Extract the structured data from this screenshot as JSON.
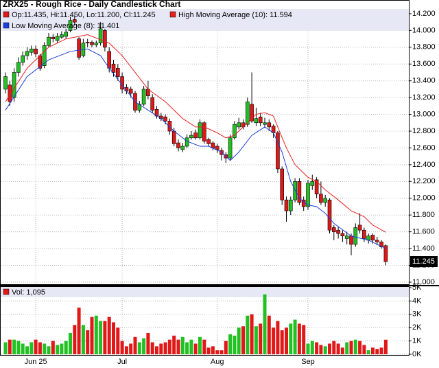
{
  "chart_data": [
    {
      "type": "candlestick",
      "title": "ZRX25 - Rough Rice - Daily Candlestick Chart",
      "ohlc_label": "Op:11.435, Hi:11.450, Lo:11.200, Cl:11.245",
      "up_color": "#22c022",
      "down_color": "#e01818",
      "grid": true,
      "ylim": [
        10.975,
        14.355
      ],
      "yticks": [
        {
          "value": 11.0,
          "label": "11.000"
        },
        {
          "value": 11.2,
          "label": "11.200"
        },
        {
          "value": 11.4,
          "label": "11.400"
        },
        {
          "value": 11.6,
          "label": "11.600"
        },
        {
          "value": 11.8,
          "label": "11.800"
        },
        {
          "value": 12.0,
          "label": "12.000"
        },
        {
          "value": 12.2,
          "label": "12.200"
        },
        {
          "value": 12.4,
          "label": "12.400"
        },
        {
          "value": 12.6,
          "label": "12.600"
        },
        {
          "value": 12.8,
          "label": "12.800"
        },
        {
          "value": 13.0,
          "label": "13.000"
        },
        {
          "value": 13.2,
          "label": "13.200"
        },
        {
          "value": 13.4,
          "label": "13.400"
        },
        {
          "value": 13.6,
          "label": "13.600"
        },
        {
          "value": 13.8,
          "label": "13.800"
        },
        {
          "value": 14.0,
          "label": "14.000"
        },
        {
          "value": 14.2,
          "label": "14.200"
        }
      ],
      "open": [
        13.3,
        13.35,
        13.2,
        13.5,
        13.62,
        13.7,
        13.74,
        13.78,
        13.7,
        13.58,
        13.82,
        13.92,
        13.88,
        13.92,
        13.93,
        14.0,
        14.13,
        13.9,
        13.7,
        13.86,
        13.86,
        13.83,
        13.85,
        14.0,
        13.75,
        13.6,
        13.55,
        13.45,
        13.32,
        13.3,
        13.25,
        13.05,
        13.12,
        13.3,
        13.2,
        13.06,
        12.98,
        12.97,
        12.92,
        12.8,
        12.66,
        12.58,
        12.62,
        12.72,
        12.78,
        12.72,
        12.9,
        12.7,
        12.66,
        12.62,
        12.57,
        12.52,
        12.48,
        12.72,
        12.85,
        12.9,
        12.88,
        13.12,
        12.9,
        12.97,
        12.88,
        12.9,
        12.86,
        12.78,
        12.35,
        11.98,
        11.85,
        11.98,
        12.2,
        11.98,
        11.9,
        12.15,
        12.22,
        12.05,
        11.95,
        11.98,
        11.65,
        11.62,
        11.58,
        11.52,
        11.55,
        11.45,
        11.68,
        11.62,
        11.5,
        11.56,
        11.5,
        11.48,
        11.435
      ],
      "high": [
        13.5,
        13.4,
        13.55,
        13.68,
        13.75,
        13.8,
        13.82,
        13.82,
        13.72,
        13.86,
        13.97,
        13.96,
        13.97,
        13.99,
        14.02,
        14.16,
        14.18,
        13.92,
        13.9,
        13.9,
        13.88,
        13.88,
        14.1,
        14.02,
        13.8,
        13.65,
        13.6,
        13.5,
        13.36,
        13.33,
        13.28,
        13.16,
        13.34,
        13.4,
        13.24,
        13.1,
        13.02,
        13.0,
        12.95,
        12.84,
        12.7,
        12.66,
        12.76,
        12.8,
        12.82,
        12.94,
        12.92,
        12.72,
        12.68,
        12.65,
        12.6,
        12.55,
        12.76,
        12.92,
        12.96,
        12.94,
        13.2,
        13.5,
        13.08,
        13.02,
        12.96,
        12.94,
        12.88,
        12.8,
        12.38,
        12.02,
        12.02,
        12.24,
        12.24,
        12.02,
        12.22,
        12.28,
        12.25,
        12.2,
        12.04,
        12.0,
        11.68,
        11.66,
        11.62,
        11.6,
        11.58,
        11.7,
        11.82,
        11.65,
        11.58,
        11.58,
        11.54,
        11.5,
        11.45
      ],
      "low": [
        13.25,
        13.1,
        13.15,
        13.45,
        13.58,
        13.65,
        13.7,
        13.68,
        13.52,
        13.55,
        13.8,
        13.86,
        13.85,
        13.9,
        13.9,
        13.98,
        14.06,
        13.65,
        13.68,
        13.8,
        13.8,
        13.8,
        13.82,
        13.75,
        13.5,
        13.45,
        13.4,
        13.25,
        13.24,
        13.2,
        13.02,
        13.02,
        13.1,
        13.18,
        13.02,
        12.95,
        12.92,
        12.88,
        12.76,
        12.62,
        12.56,
        12.55,
        12.6,
        12.7,
        12.7,
        12.7,
        12.65,
        12.62,
        12.57,
        12.54,
        12.45,
        12.42,
        12.45,
        12.7,
        12.82,
        12.82,
        12.85,
        12.9,
        12.86,
        12.86,
        12.84,
        12.8,
        12.72,
        12.3,
        11.92,
        11.72,
        11.8,
        11.95,
        11.92,
        11.85,
        11.86,
        12.1,
        12.0,
        11.92,
        11.9,
        11.58,
        11.5,
        11.52,
        11.48,
        11.45,
        11.32,
        11.42,
        11.58,
        11.48,
        11.46,
        11.46,
        11.44,
        11.4,
        11.2
      ],
      "close": [
        13.45,
        13.15,
        13.5,
        13.62,
        13.7,
        13.75,
        13.78,
        13.72,
        13.55,
        13.82,
        13.92,
        13.9,
        13.93,
        13.95,
        13.98,
        14.12,
        14.1,
        13.68,
        13.85,
        13.85,
        13.83,
        13.85,
        14.02,
        13.8,
        13.55,
        13.5,
        13.45,
        13.3,
        13.28,
        13.25,
        13.05,
        13.12,
        13.3,
        13.22,
        13.05,
        12.98,
        12.95,
        12.92,
        12.8,
        12.65,
        12.6,
        12.62,
        12.72,
        12.75,
        12.72,
        12.9,
        12.68,
        12.65,
        12.6,
        12.58,
        12.52,
        12.48,
        12.72,
        12.88,
        12.9,
        12.85,
        13.15,
        12.92,
        12.95,
        12.9,
        12.9,
        12.85,
        12.78,
        12.35,
        11.98,
        11.85,
        11.98,
        12.2,
        11.95,
        11.9,
        12.18,
        12.2,
        12.05,
        11.95,
        12.0,
        11.62,
        11.6,
        11.58,
        11.55,
        11.55,
        11.45,
        11.65,
        11.62,
        11.52,
        11.55,
        11.5,
        11.48,
        11.42,
        11.245
      ],
      "ma_series": [
        {
          "name": "High Moving Average (10): 11.594",
          "color": "#e82020",
          "x": [
            0,
            5,
            10,
            14,
            19,
            24,
            27,
            30,
            33,
            37,
            41,
            44,
            46,
            49,
            51,
            53,
            55,
            58,
            60,
            62,
            63,
            65,
            67,
            70,
            72,
            74,
            77,
            80,
            83,
            85,
            88
          ],
          "values": [
            13.15,
            13.55,
            13.8,
            13.9,
            13.95,
            13.85,
            13.7,
            13.5,
            13.3,
            13.15,
            12.95,
            12.85,
            12.85,
            12.78,
            12.72,
            12.75,
            12.85,
            13.0,
            13.02,
            12.98,
            12.85,
            12.6,
            12.4,
            12.25,
            12.2,
            12.1,
            11.98,
            11.85,
            11.78,
            11.68,
            11.594
          ]
        },
        {
          "name": "Low Moving Average (8): 11.401",
          "color": "#1a3ee0",
          "x": [
            0,
            5,
            10,
            15,
            19,
            22,
            24,
            27,
            30,
            33,
            36,
            39,
            42,
            45,
            47,
            50,
            52,
            54,
            57,
            60,
            62,
            64,
            66,
            68,
            70,
            72,
            74,
            76,
            80,
            84,
            88
          ],
          "values": [
            13.05,
            13.45,
            13.65,
            13.75,
            13.78,
            13.7,
            13.55,
            13.35,
            13.15,
            13.05,
            12.95,
            12.8,
            12.68,
            12.62,
            12.62,
            12.55,
            12.45,
            12.55,
            12.75,
            12.85,
            12.78,
            12.55,
            12.2,
            12.0,
            11.92,
            11.9,
            11.82,
            11.7,
            11.55,
            11.5,
            11.401
          ]
        }
      ]
    },
    {
      "type": "bar",
      "legend": "Vol: 1,095",
      "grid": true,
      "categories": [
        null,
        null,
        null,
        null,
        null,
        null,
        null,
        "Jun 25",
        null,
        null,
        null,
        null,
        null,
        null,
        null,
        null,
        null,
        null,
        null,
        null,
        null,
        null,
        null,
        null,
        null,
        null,
        null,
        "Jul",
        null,
        null,
        null,
        null,
        null,
        null,
        null,
        null,
        null,
        null,
        null,
        null,
        null,
        null,
        null,
        null,
        null,
        null,
        null,
        null,
        null,
        "Aug",
        null,
        null,
        null,
        null,
        null,
        null,
        null,
        null,
        null,
        null,
        null,
        null,
        null,
        null,
        null,
        null,
        null,
        null,
        null,
        null,
        "Sep",
        null,
        null,
        null,
        null,
        null,
        null,
        null,
        null,
        null,
        null,
        null,
        null,
        null,
        null,
        null,
        null,
        null,
        null
      ],
      "values": [
        900,
        1100,
        1100,
        1000,
        800,
        600,
        900,
        1100,
        900,
        800,
        600,
        1000,
        700,
        800,
        1000,
        1600,
        2200,
        3500,
        2200,
        1800,
        2800,
        2900,
        2500,
        2500,
        2800,
        2400,
        2000,
        1000,
        600,
        800,
        1300,
        900,
        1200,
        1600,
        900,
        600,
        800,
        900,
        1100,
        1400,
        1100,
        1300,
        900,
        1100,
        800,
        1300,
        1100,
        500,
        600,
        300,
        300,
        1000,
        1500,
        1400,
        2000,
        2100,
        2900,
        3000,
        2100,
        2300,
        4500,
        2900,
        2000,
        2500,
        1800,
        2000,
        2300,
        2600,
        2300,
        2200,
        800,
        1000,
        900,
        700,
        600,
        800,
        1000,
        800,
        500,
        900,
        1000,
        1100,
        1000,
        700,
        300,
        500,
        400,
        500,
        1095
      ],
      "ylim": [
        0,
        5000
      ],
      "yticks": [
        {
          "value": 0,
          "label": "0K"
        },
        {
          "value": 1000,
          "label": "1K"
        },
        {
          "value": 2000,
          "label": "2K"
        },
        {
          "value": 3000,
          "label": "3K"
        },
        {
          "value": 4000,
          "label": "4K"
        },
        {
          "value": 5000,
          "label": "5K"
        }
      ]
    }
  ]
}
